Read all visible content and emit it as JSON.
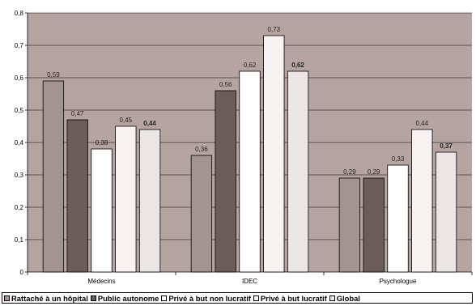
{
  "chart_data": {
    "type": "bar",
    "categories": [
      "Médecins",
      "IDEC",
      "Psychologue"
    ],
    "series": [
      {
        "name": "Rattaché à un hôpital",
        "values": [
          0.59,
          0.36,
          0.29
        ],
        "color": "#a39491",
        "bold_label": false
      },
      {
        "name": "Public autonome",
        "values": [
          0.47,
          0.56,
          0.29
        ],
        "color": "#6c5d5b",
        "bold_label": false
      },
      {
        "name": "Privé à but non lucratif",
        "values": [
          0.38,
          0.62,
          0.33
        ],
        "color": "#ffffff",
        "bold_label": false
      },
      {
        "name": "Privé à but lucratif",
        "values": [
          0.45,
          0.73,
          0.44
        ],
        "color": "#f6f3f2",
        "bold_label": false
      },
      {
        "name": "Global",
        "values": [
          0.44,
          0.62,
          0.37
        ],
        "color": "#ebe6e5",
        "bold_label": true
      }
    ],
    "value_labels": [
      [
        "0,59",
        "0,36",
        "0,29"
      ],
      [
        "0,47",
        "0,56",
        "0,29"
      ],
      [
        "0,38",
        "0,62",
        "0,33"
      ],
      [
        "0,45",
        "0,73",
        "0,44"
      ],
      [
        "0,44",
        "0,62",
        "0,37"
      ]
    ],
    "y_ticks": [
      "0",
      "0,1",
      "0,2",
      "0,3",
      "0,4",
      "0,5",
      "0,6",
      "0,7",
      "0,8"
    ],
    "ylim": [
      0,
      0.8
    ],
    "plot_background": "#b5a4a1",
    "grid": true,
    "legend_position": "bottom"
  }
}
